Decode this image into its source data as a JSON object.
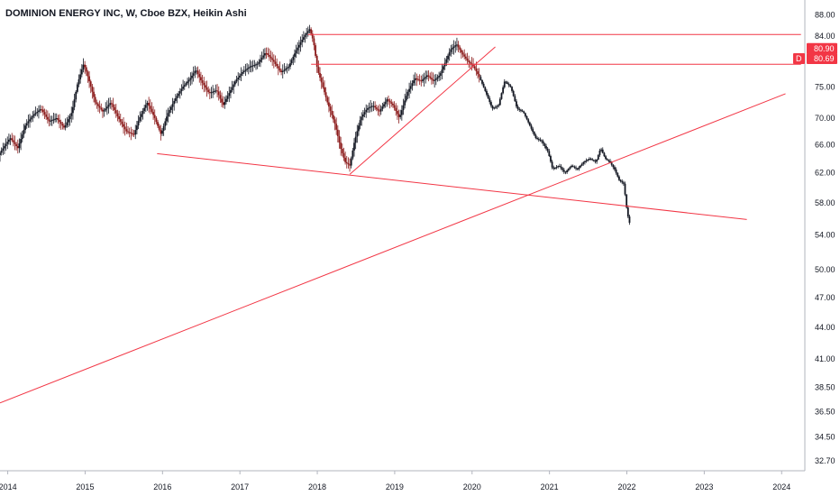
{
  "chart_data": {
    "type": "candlestick",
    "title": "DOMINION ENERGY INC, W, Cboe BZX, Heikin Ashi",
    "y_scale": "log",
    "ylim": [
      32.0,
      91.0
    ],
    "xlim": [
      2013.9,
      2024.3
    ],
    "y_ticks": [
      "88.00",
      "84.00",
      "80.90",
      "80.69",
      "75.00",
      "70.00",
      "66.00",
      "62.00",
      "58.00",
      "54.00",
      "50.00",
      "47.00",
      "44.00",
      "41.00",
      "38.50",
      "36.50",
      "34.50",
      "32.70"
    ],
    "x_ticks": [
      {
        "label": "2014",
        "x": 2014
      },
      {
        "label": "2015",
        "x": 2015
      },
      {
        "label": "2016",
        "x": 2016
      },
      {
        "label": "2017",
        "x": 2017
      },
      {
        "label": "2018",
        "x": 2018
      },
      {
        "label": "2019",
        "x": 2019
      },
      {
        "label": "2020",
        "x": 2020
      },
      {
        "label": "2021",
        "x": 2021
      },
      {
        "label": "2022",
        "x": 2022
      },
      {
        "label": "2023",
        "x": 2023
      },
      {
        "label": "2024",
        "x": 2024
      }
    ],
    "price_path": [
      [
        2013.9,
        64.5
      ],
      [
        2014.05,
        67.0
      ],
      [
        2014.15,
        65.5
      ],
      [
        2014.25,
        69.0
      ],
      [
        2014.35,
        70.5
      ],
      [
        2014.45,
        71.5
      ],
      [
        2014.55,
        69.5
      ],
      [
        2014.65,
        70.0
      ],
      [
        2014.75,
        68.5
      ],
      [
        2014.85,
        71.0
      ],
      [
        2014.92,
        75.5
      ],
      [
        2015.0,
        79.0
      ],
      [
        2015.05,
        77.0
      ],
      [
        2015.15,
        72.5
      ],
      [
        2015.25,
        71.0
      ],
      [
        2015.35,
        72.5
      ],
      [
        2015.45,
        70.0
      ],
      [
        2015.55,
        68.0
      ],
      [
        2015.65,
        67.5
      ],
      [
        2015.72,
        70.0
      ],
      [
        2015.82,
        72.5
      ],
      [
        2015.92,
        70.0
      ],
      [
        2016.0,
        67.5
      ],
      [
        2016.08,
        70.5
      ],
      [
        2016.18,
        73.0
      ],
      [
        2016.28,
        75.0
      ],
      [
        2016.38,
        76.5
      ],
      [
        2016.45,
        78.0
      ],
      [
        2016.52,
        76.0
      ],
      [
        2016.62,
        74.0
      ],
      [
        2016.72,
        74.5
      ],
      [
        2016.8,
        72.0
      ],
      [
        2016.88,
        74.0
      ],
      [
        2016.96,
        76.0
      ],
      [
        2017.05,
        77.5
      ],
      [
        2017.15,
        78.5
      ],
      [
        2017.25,
        79.0
      ],
      [
        2017.35,
        81.0
      ],
      [
        2017.45,
        79.5
      ],
      [
        2017.55,
        77.5
      ],
      [
        2017.65,
        78.5
      ],
      [
        2017.75,
        81.5
      ],
      [
        2017.85,
        84.0
      ],
      [
        2017.92,
        85.3
      ],
      [
        2017.97,
        83.0
      ],
      [
        2018.02,
        78.0
      ],
      [
        2018.08,
        75.5
      ],
      [
        2018.15,
        72.5
      ],
      [
        2018.25,
        69.0
      ],
      [
        2018.32,
        65.5
      ],
      [
        2018.38,
        63.5
      ],
      [
        2018.44,
        63.0
      ],
      [
        2018.5,
        66.5
      ],
      [
        2018.58,
        70.0
      ],
      [
        2018.66,
        71.5
      ],
      [
        2018.74,
        72.0
      ],
      [
        2018.82,
        71.0
      ],
      [
        2018.92,
        73.0
      ],
      [
        2019.0,
        72.0
      ],
      [
        2019.08,
        70.0
      ],
      [
        2019.18,
        74.0
      ],
      [
        2019.28,
        76.5
      ],
      [
        2019.36,
        76.0
      ],
      [
        2019.44,
        77.0
      ],
      [
        2019.52,
        76.0
      ],
      [
        2019.6,
        77.0
      ],
      [
        2019.68,
        79.5
      ],
      [
        2019.74,
        81.5
      ],
      [
        2019.82,
        82.5
      ],
      [
        2019.88,
        81.0
      ],
      [
        2019.96,
        79.5
      ],
      [
        2020.04,
        78.5
      ],
      [
        2020.12,
        76.5
      ],
      [
        2020.2,
        74.0
      ],
      [
        2020.28,
        71.5
      ],
      [
        2020.36,
        72.0
      ],
      [
        2020.44,
        76.0
      ],
      [
        2020.52,
        75.0
      ],
      [
        2020.6,
        71.5
      ],
      [
        2020.68,
        71.0
      ],
      [
        2020.76,
        69.0
      ],
      [
        2020.84,
        67.0
      ],
      [
        2020.92,
        66.5
      ],
      [
        2021.0,
        65.0
      ],
      [
        2021.06,
        62.5
      ],
      [
        2021.14,
        63.0
      ],
      [
        2021.22,
        62.0
      ],
      [
        2021.3,
        63.0
      ],
      [
        2021.38,
        62.5
      ],
      [
        2021.46,
        63.5
      ],
      [
        2021.54,
        64.0
      ],
      [
        2021.62,
        63.5
      ],
      [
        2021.68,
        65.5
      ],
      [
        2021.74,
        64.0
      ],
      [
        2021.8,
        63.5
      ],
      [
        2021.86,
        62.5
      ],
      [
        2021.92,
        61.0
      ],
      [
        2021.98,
        60.5
      ],
      [
        2022.02,
        57.0
      ],
      [
        2022.05,
        55.5
      ]
    ],
    "lines": [
      {
        "name": "resistance-upper",
        "from": [
          2017.88,
          84.3
        ],
        "to": [
          2024.25,
          84.3
        ]
      },
      {
        "name": "resistance-lower",
        "from": [
          2017.92,
          78.9
        ],
        "to": [
          2024.25,
          78.9
        ]
      },
      {
        "name": "descending-support",
        "from": [
          2015.93,
          64.7
        ],
        "to": [
          2023.55,
          55.9
        ]
      },
      {
        "name": "rising-trend-long",
        "from": [
          2013.9,
          37.2
        ],
        "to": [
          2024.05,
          73.9
        ]
      },
      {
        "name": "rising-trend-short",
        "from": [
          2018.42,
          61.8
        ],
        "to": [
          2020.3,
          82.0
        ]
      }
    ],
    "price_tags": [
      {
        "label": "80.90",
        "prefix": "",
        "value": 80.9,
        "color": "#f23645"
      },
      {
        "label": "80.69",
        "prefix": "D",
        "value": 80.69,
        "color": "#f23645"
      }
    ],
    "colors": {
      "candle": "#131722",
      "bear_candle": "#8b1a1a",
      "line": "#f23645"
    }
  }
}
